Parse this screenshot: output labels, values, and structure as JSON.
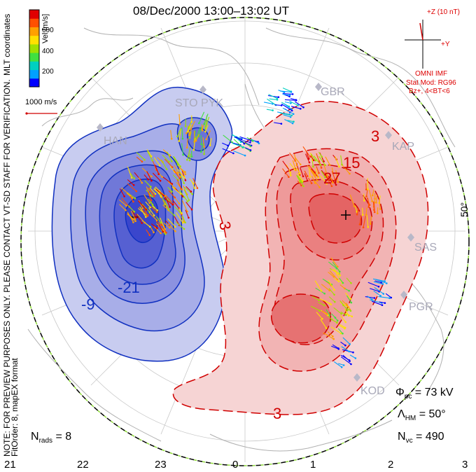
{
  "title": "08/Dec/2000  13:00–13:02  UT",
  "colorbar": {
    "label": "Vel [m/s]",
    "ticks": [
      "600",
      "400",
      "200"
    ],
    "colors": [
      "#0000ff",
      "#00a0ff",
      "#00d0c0",
      "#40e040",
      "#a0e000",
      "#ffe000",
      "#ffa000",
      "#ff5000",
      "#e00000"
    ]
  },
  "side_note_left": "NOTE: FOR PREVIEW PURPOSES ONLY. PLEASE CONTACT VT-SD STAFF FOR VERIFICATION.",
  "mlt_label": "MLT coordinates",
  "fit_label": "FitOrder: 8, mapEX format",
  "scale": {
    "label": "1000 m/s"
  },
  "imf": {
    "top": "+Z (10 nT)",
    "right": "+Y",
    "source": "OMNI IMF",
    "model": "Stat Mod: RG96",
    "cond": "Bz+, 4<BT<6"
  },
  "stations": [
    "STO PYK",
    "GBR",
    "HAN",
    "KAP",
    "SAS",
    "PGR",
    "KOD"
  ],
  "contour_labels": {
    "neg": [
      "-21",
      "-9"
    ],
    "pos": [
      "3",
      "15",
      "27",
      "3",
      "3"
    ]
  },
  "latitude_label": "50°",
  "stats": {
    "phi_sym": "Φ",
    "phi_sub": "pc",
    "phi_val": "= 73 kV",
    "lam_sym": "Λ",
    "lam_sub": "HM",
    "lam_val": "= 50°",
    "nvc_sym": "N",
    "nvc_sub": "vc",
    "nvc_val": "= 490",
    "nrads_sym": "N",
    "nrads_sub": "rads",
    "nrads_val": "= 8"
  },
  "mlt_ticks": [
    "21",
    "22",
    "23",
    "0",
    "1",
    "2",
    "3"
  ]
}
